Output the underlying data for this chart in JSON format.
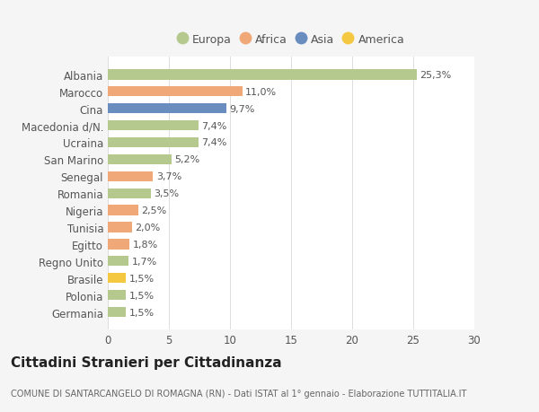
{
  "countries": [
    "Albania",
    "Marocco",
    "Cina",
    "Macedonia d/N.",
    "Ucraina",
    "San Marino",
    "Senegal",
    "Romania",
    "Nigeria",
    "Tunisia",
    "Egitto",
    "Regno Unito",
    "Brasile",
    "Polonia",
    "Germania"
  ],
  "values": [
    25.3,
    11.0,
    9.7,
    7.4,
    7.4,
    5.2,
    3.7,
    3.5,
    2.5,
    2.0,
    1.8,
    1.7,
    1.5,
    1.5,
    1.5
  ],
  "labels": [
    "25,3%",
    "11,0%",
    "9,7%",
    "7,4%",
    "7,4%",
    "5,2%",
    "3,7%",
    "3,5%",
    "2,5%",
    "2,0%",
    "1,8%",
    "1,7%",
    "1,5%",
    "1,5%",
    "1,5%"
  ],
  "colors": [
    "#b5c98e",
    "#f0a878",
    "#6a8dbf",
    "#b5c98e",
    "#b5c98e",
    "#b5c98e",
    "#f0a878",
    "#b5c98e",
    "#f0a878",
    "#f0a878",
    "#f0a878",
    "#b5c98e",
    "#f5c842",
    "#b5c98e",
    "#b5c98e"
  ],
  "legend": [
    {
      "label": "Europa",
      "color": "#b5c98e"
    },
    {
      "label": "Africa",
      "color": "#f0a878"
    },
    {
      "label": "Asia",
      "color": "#6a8dbf"
    },
    {
      "label": "America",
      "color": "#f5c842"
    }
  ],
  "title": "Cittadini Stranieri per Cittadinanza",
  "subtitle": "COMUNE DI SANTARCANGELO DI ROMAGNA (RN) - Dati ISTAT al 1° gennaio - Elaborazione TUTTITALIA.IT",
  "xlim": [
    0,
    30
  ],
  "xticks": [
    0,
    5,
    10,
    15,
    20,
    25,
    30
  ],
  "bg_color": "#f5f5f5",
  "plot_bg": "#ffffff",
  "bar_height": 0.6,
  "label_fontsize": 8,
  "ytick_fontsize": 8.5,
  "xtick_fontsize": 8.5,
  "title_fontsize": 11,
  "subtitle_fontsize": 7
}
